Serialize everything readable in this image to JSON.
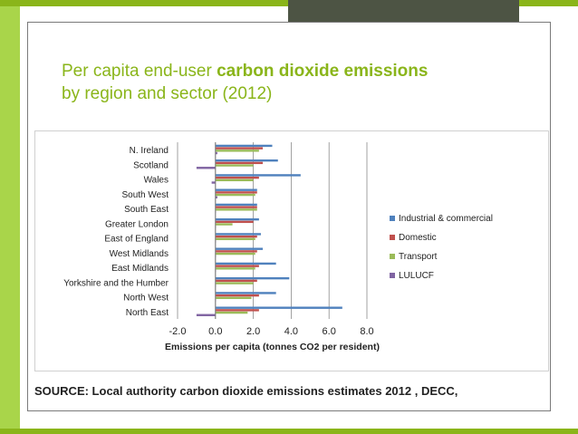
{
  "slide": {
    "title_prefix": "Per capita end-user ",
    "title_bold": "carbon dioxide emissions",
    "title_line2": "by region and sector (2012)",
    "source": "SOURCE: Local authority carbon dioxide emissions estimates 2012 , DECC,",
    "accent_color": "#8ab51a"
  },
  "chart_data": {
    "type": "bar",
    "orientation": "horizontal",
    "categories": [
      "N. Ireland",
      "Scotland",
      "Wales",
      "South West",
      "South East",
      "Greater London",
      "East of England",
      "West Midlands",
      "East Midlands",
      "Yorkshire and the Humber",
      "North West",
      "North East"
    ],
    "series": [
      {
        "name": "Industrial & commercial",
        "color": "#4f81bd",
        "values": [
          3.0,
          3.3,
          4.5,
          2.2,
          2.2,
          2.3,
          2.4,
          2.5,
          3.2,
          3.9,
          3.2,
          6.7
        ]
      },
      {
        "name": "Domestic",
        "color": "#c0504d",
        "values": [
          2.5,
          2.5,
          2.3,
          2.2,
          2.2,
          2.0,
          2.2,
          2.2,
          2.3,
          2.2,
          2.3,
          2.3
        ]
      },
      {
        "name": "Transport",
        "color": "#9bbb59",
        "values": [
          2.3,
          2.0,
          2.0,
          2.1,
          2.2,
          0.9,
          2.1,
          2.1,
          2.1,
          2.0,
          1.9,
          1.7
        ]
      },
      {
        "name": "LULUCF",
        "color": "#8064a2",
        "values": [
          0.1,
          -1.0,
          -0.2,
          0.1,
          0.0,
          0.0,
          0.0,
          0.0,
          0.0,
          0.0,
          0.0,
          -1.0
        ]
      }
    ],
    "xlim": [
      -2.0,
      8.0
    ],
    "xticks": [
      "-2.0",
      "0.0",
      "2.0",
      "4.0",
      "6.0",
      "8.0"
    ],
    "xlabel": "Emissions per capita (tonnes CO2 per resident)",
    "grid": "vertical",
    "legend": "right"
  }
}
